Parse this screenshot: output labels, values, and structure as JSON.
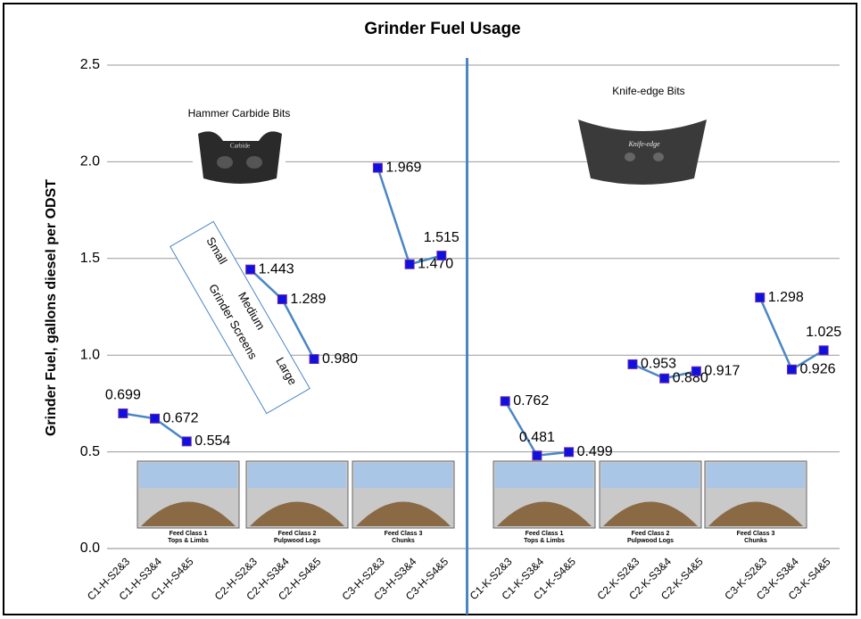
{
  "chart_data": {
    "type": "line",
    "title": "Grinder Fuel Usage",
    "y_label": "Grinder Fuel, gallons diesel per ODST",
    "categories": [
      "C1-H-S2&3",
      "C1-H-S3&4",
      "C1-H-S4&5",
      null,
      "C2-H-S2&3",
      "C2-H-S3&4",
      "C2-H-S4&5",
      null,
      "C3-H-S2&3",
      "C3-H-S3&4",
      "C3-H-S4&5",
      null,
      "C1-K-S2&3",
      "C1-K-S3&4",
      "C1-K-S4&5",
      null,
      "C2-K-S2&3",
      "C2-K-S3&4",
      "C2-K-S4&5",
      null,
      "C3-K-S2&3",
      "C3-K-S3&4",
      "C3-K-S4&5"
    ],
    "series": [
      {
        "color": "#4a86c5",
        "marker_color": "#1010e0",
        "values": [
          0.699,
          0.672,
          0.554,
          null,
          1.443,
          1.289,
          0.98,
          null,
          1.969,
          1.47,
          1.515,
          null,
          0.762,
          0.481,
          0.499,
          null,
          0.953,
          0.88,
          0.917,
          null,
          1.298,
          0.926,
          1.025
        ],
        "value_labels": [
          "0.699",
          "0.672",
          "0.554",
          null,
          "1.443",
          "1.289",
          "0.980",
          null,
          "1.969",
          "1.470",
          "1.515",
          null,
          "0.762",
          "0.481",
          "0.499",
          null,
          "0.953",
          "0.880",
          "0.917",
          null,
          "1.298",
          "0.926",
          "1.025"
        ]
      }
    ],
    "ylim": [
      0,
      2.5
    ],
    "yticks": [
      {
        "value": 0,
        "label": "0.0"
      },
      {
        "value": 0.5,
        "label": "0.5"
      },
      {
        "value": 1,
        "label": "1.0"
      },
      {
        "value": 1.5,
        "label": "1.5"
      },
      {
        "value": 2,
        "label": "2.0"
      },
      {
        "value": 2.5,
        "label": "2.5"
      }
    ],
    "grid": true,
    "annotations": {
      "hammer": "Hammer Carbide Bits",
      "knife": "Knife-edge Bits",
      "carbide_stamp": "Carbide",
      "knife_stamp": "Knife-edge",
      "screens": [
        "Small",
        "Medium",
        "Large",
        "Grinder Screens"
      ],
      "photos": [
        [
          "Feed Class 1",
          "Tops & Limbs"
        ],
        [
          "Feed Class 2",
          "Pulpwood Logs"
        ],
        [
          "Feed Class 3",
          "Chunks"
        ],
        [
          "Feed Class 1",
          "Tops & Limbs"
        ],
        [
          "Feed Class 2",
          "Pulpwood Logs"
        ],
        [
          "Feed Class 3",
          "Chunks"
        ]
      ]
    }
  }
}
